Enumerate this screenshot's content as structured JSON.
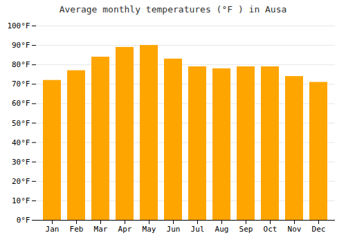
{
  "chart_data": {
    "type": "bar",
    "title": "Average monthly temperatures (°F ) in Ausa",
    "categories": [
      "Jan",
      "Feb",
      "Mar",
      "Apr",
      "May",
      "Jun",
      "Jul",
      "Aug",
      "Sep",
      "Oct",
      "Nov",
      "Dec"
    ],
    "values": [
      72,
      77,
      84,
      89,
      90,
      83,
      79,
      78,
      79,
      79,
      74,
      71
    ],
    "color": "#FFA500",
    "ylim": [
      0,
      100
    ],
    "yticks": [
      {
        "value": 0,
        "label": "0°F"
      },
      {
        "value": 10,
        "label": "10°F"
      },
      {
        "value": 20,
        "label": "20°F"
      },
      {
        "value": 30,
        "label": "30°F"
      },
      {
        "value": 40,
        "label": "40°F"
      },
      {
        "value": 50,
        "label": "50°F"
      },
      {
        "value": 60,
        "label": "60°F"
      },
      {
        "value": 70,
        "label": "70°F"
      },
      {
        "value": 80,
        "label": "80°F"
      },
      {
        "value": 90,
        "label": "90°F"
      },
      {
        "value": 100,
        "label": "100°F"
      }
    ],
    "grid": true
  }
}
